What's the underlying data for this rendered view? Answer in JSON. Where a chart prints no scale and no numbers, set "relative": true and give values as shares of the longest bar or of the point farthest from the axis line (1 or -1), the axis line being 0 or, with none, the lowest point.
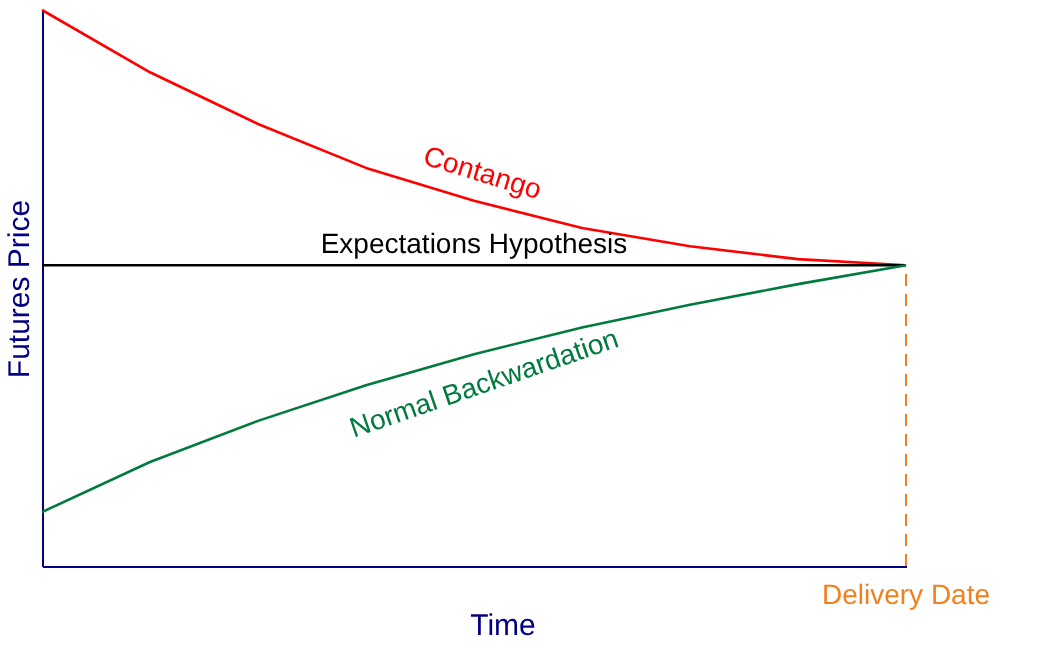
{
  "chart_data": {
    "type": "line",
    "relative": true,
    "xlabel": "Time",
    "ylabel": "Futures Price",
    "legend": false,
    "categories": [
      null,
      null,
      null,
      null,
      null,
      null,
      null,
      null,
      null
    ],
    "series": [
      {
        "name": "Contango",
        "color": "#ff0000",
        "values": [
          1,
          0.888,
          0.795,
          0.716,
          0.657,
          0.608,
          0.575,
          0.552,
          0.541
        ]
      },
      {
        "name": "Expectations Hypothesis",
        "color": "#000000",
        "values": [
          0.541,
          0.541,
          0.541,
          0.541,
          0.541,
          0.541,
          0.541,
          0.541,
          0.541
        ]
      },
      {
        "name": "Normal Backwardation",
        "color": "#007a3d",
        "values": [
          0.097,
          0.187,
          0.261,
          0.325,
          0.381,
          0.429,
          0.47,
          0.507,
          0.541
        ]
      }
    ],
    "ref_lines": [
      {
        "axis": "x",
        "label": "Delivery Date",
        "color": "#f08020",
        "line_style": "dashed"
      }
    ]
  }
}
